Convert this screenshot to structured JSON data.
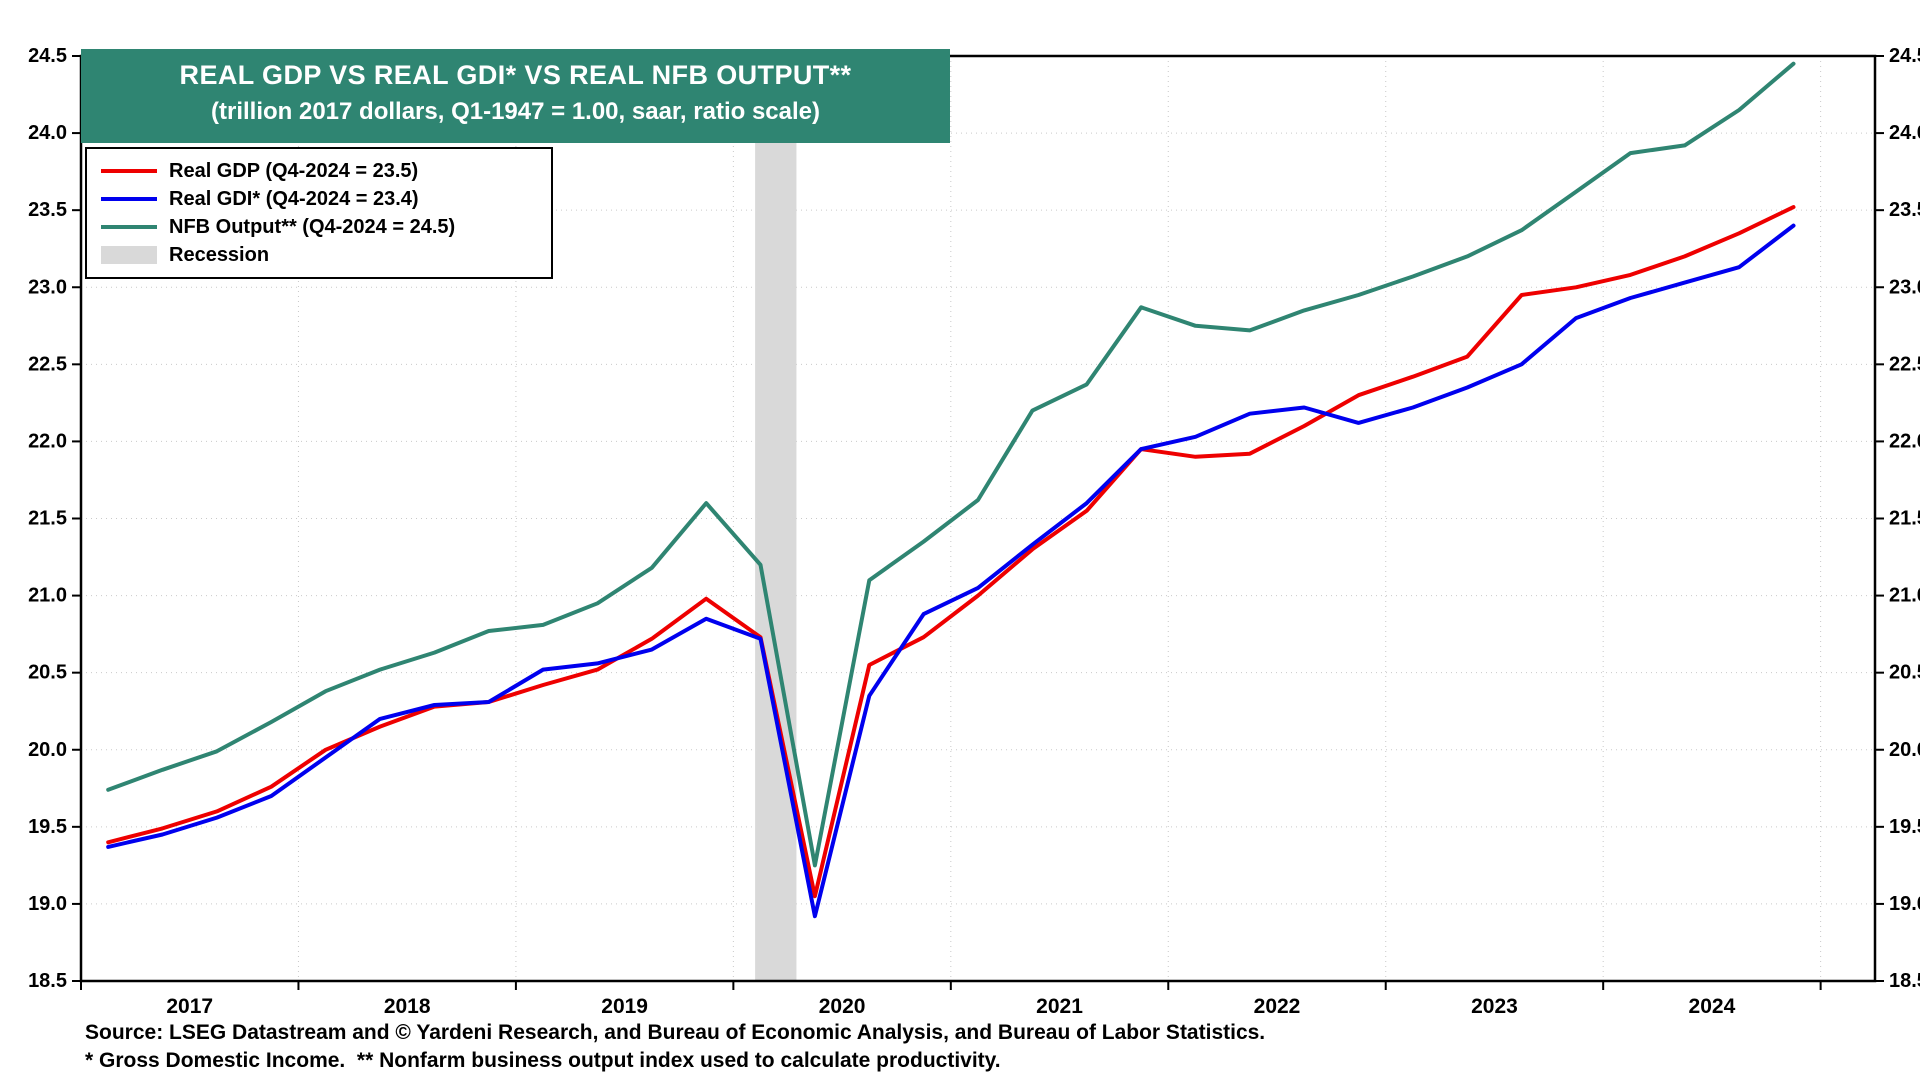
{
  "header": {
    "title": "REAL GDP VS REAL GDI* VS REAL NFB OUTPUT**",
    "subtitle": "(trillion 2017 dollars, Q1-1947 = 1.00, saar, ratio scale)"
  },
  "colors": {
    "header_bg": "#2f8572",
    "gdp_line": "#ee0000",
    "gdi_line": "#0000ee",
    "nfb_line": "#2f8572",
    "recession_band": "#d9d9d9",
    "plot_border": "#000000",
    "gridline": "#c9c9c9"
  },
  "legend": {
    "items": [
      {
        "label": "Real GDP (Q4-2024 = 23.5)",
        "color": "#ee0000",
        "swatch": "line"
      },
      {
        "label": "Real GDI* (Q4-2024 = 23.4)",
        "color": "#0000ee",
        "swatch": "line"
      },
      {
        "label": "NFB Output** (Q4-2024 = 24.5)",
        "color": "#2f8572",
        "swatch": "line"
      },
      {
        "label": "Recession",
        "color": "#d9d9d9",
        "swatch": "rect"
      }
    ]
  },
  "footer": {
    "source": "Source: LSEG Datastream and © Yardeni Research, and Bureau of Economic Analysis, and Bureau of Labor Statistics.",
    "notes": "* Gross Domestic Income.  ** Nonfarm business output index used to calculate productivity."
  },
  "chart_data": {
    "type": "line",
    "title": "REAL GDP VS REAL GDI* VS REAL NFB OUTPUT**",
    "subtitle": "(trillion 2017 dollars, Q1-1947 = 1.00, saar, ratio scale)",
    "x_unit": "quarter",
    "quarters": [
      "2017-Q1",
      "2017-Q2",
      "2017-Q3",
      "2017-Q4",
      "2018-Q1",
      "2018-Q2",
      "2018-Q3",
      "2018-Q4",
      "2019-Q1",
      "2019-Q2",
      "2019-Q3",
      "2019-Q4",
      "2020-Q1",
      "2020-Q2",
      "2020-Q3",
      "2020-Q4",
      "2021-Q1",
      "2021-Q2",
      "2021-Q3",
      "2021-Q4",
      "2022-Q1",
      "2022-Q2",
      "2022-Q3",
      "2022-Q4",
      "2023-Q1",
      "2023-Q2",
      "2023-Q3",
      "2023-Q4",
      "2024-Q1",
      "2024-Q2",
      "2024-Q3",
      "2024-Q4"
    ],
    "series": [
      {
        "name": "Real GDP",
        "color": "#ee0000",
        "values": [
          19.4,
          19.49,
          19.6,
          19.76,
          20.0,
          20.15,
          20.28,
          20.31,
          20.42,
          20.52,
          20.72,
          20.98,
          20.73,
          19.05,
          20.55,
          20.73,
          21.0,
          21.3,
          21.55,
          21.95,
          21.9,
          21.92,
          22.1,
          22.3,
          22.42,
          22.55,
          22.95,
          23.0,
          23.08,
          23.2,
          23.35,
          23.52
        ]
      },
      {
        "name": "Real GDI",
        "color": "#0000ee",
        "values": [
          19.37,
          19.45,
          19.56,
          19.7,
          19.95,
          20.2,
          20.29,
          20.31,
          20.52,
          20.56,
          20.65,
          20.85,
          20.72,
          18.92,
          20.35,
          20.88,
          21.05,
          21.33,
          21.6,
          21.95,
          22.03,
          22.18,
          22.22,
          22.12,
          22.22,
          22.35,
          22.5,
          22.8,
          22.93,
          23.03,
          23.13,
          23.4
        ]
      },
      {
        "name": "NFB Output",
        "color": "#2f8572",
        "values": [
          19.74,
          19.87,
          19.99,
          20.18,
          20.38,
          20.52,
          20.63,
          20.77,
          20.81,
          20.95,
          21.18,
          21.6,
          21.2,
          19.25,
          21.1,
          21.35,
          21.62,
          22.2,
          22.37,
          22.87,
          22.75,
          22.72,
          22.85,
          22.95,
          23.07,
          23.2,
          23.37,
          23.62,
          23.87,
          23.92,
          24.15,
          24.45
        ]
      }
    ],
    "ylim": [
      18.5,
      24.5
    ],
    "y_tick_step": 0.5,
    "y_tick_labels": [
      "18.5",
      "19.0",
      "19.5",
      "20.0",
      "20.5",
      "21.0",
      "21.5",
      "22.0",
      "22.5",
      "23.0",
      "23.5",
      "24.0",
      "24.5"
    ],
    "xlim": [
      2017.0,
      2025.25
    ],
    "x_year_labels": [
      2017,
      2018,
      2019,
      2020,
      2021,
      2022,
      2023,
      2024
    ],
    "recession_bands": [
      {
        "start": 2020.1,
        "end": 2020.29
      }
    ],
    "grid": "faint dotted",
    "legend_position": "top-left",
    "axis_labels_both_sides": true
  }
}
